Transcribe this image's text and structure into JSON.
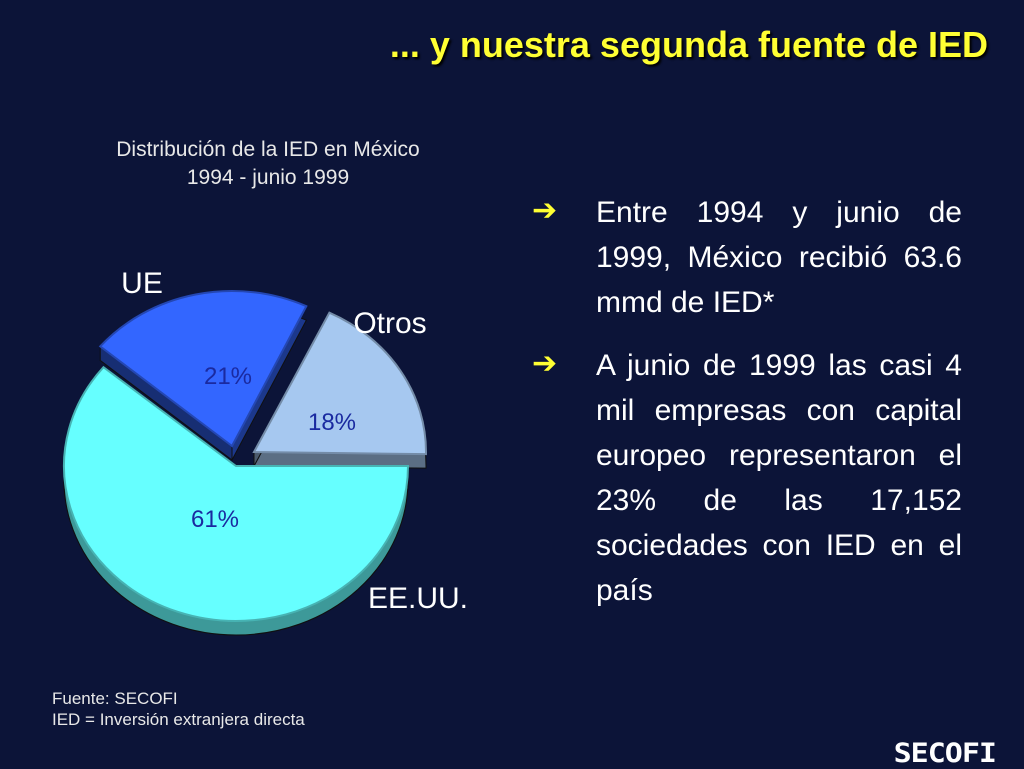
{
  "header": {
    "title": "... y nuestra segunda fuente de IED"
  },
  "chart_data": {
    "type": "pie",
    "title": "Distribución de la IED en México",
    "subtitle": "1994 - junio 1999",
    "slices": [
      {
        "label": "EE.UU.",
        "value": 61,
        "value_label": "61%",
        "color": "#66ffff"
      },
      {
        "label": "UE",
        "value": 21,
        "value_label": "21%",
        "color": "#3366ff"
      },
      {
        "label": "Otros",
        "value": 18,
        "value_label": "18%",
        "color": "#a6c8f0"
      }
    ]
  },
  "bullets": [
    {
      "icon": "arrow-right-icon",
      "text": "Entre 1994 y junio de 1999, México recibió 63.6 mmd de IED*"
    },
    {
      "icon": "arrow-right-icon",
      "text": "A junio de 1999 las casi 4 mil empresas con capital europeo representaron el 23% de las 17,152 sociedades con IED en el país"
    }
  ],
  "footer": {
    "source": "Fuente: SECOFI",
    "note": "IED = Inversión extranjera directa"
  },
  "logo": {
    "text": "SECOFI"
  }
}
